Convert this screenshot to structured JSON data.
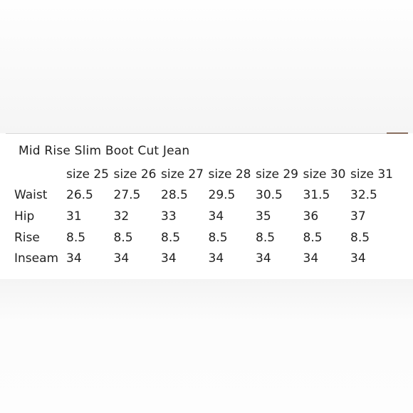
{
  "title": "Mid Rise Slim Boot Cut Jean",
  "table": {
    "columns": [
      "size 25",
      "size 26",
      "size 27",
      "size 28",
      "size 29",
      "size 30",
      "size 31"
    ],
    "rows": [
      {
        "label": "Waist",
        "values": [
          "26.5",
          "27.5",
          "28.5",
          "29.5",
          "30.5",
          "31.5",
          "32.5"
        ]
      },
      {
        "label": "Hip",
        "values": [
          "31",
          "32",
          "33",
          "34",
          "35",
          "36",
          "37"
        ]
      },
      {
        "label": "Rise",
        "values": [
          "8.5",
          "8.5",
          "8.5",
          "8.5",
          "8.5",
          "8.5",
          "8.5"
        ]
      },
      {
        "label": "Inseam",
        "values": [
          "34",
          "34",
          "34",
          "34",
          "34",
          "34",
          "34"
        ]
      }
    ]
  }
}
